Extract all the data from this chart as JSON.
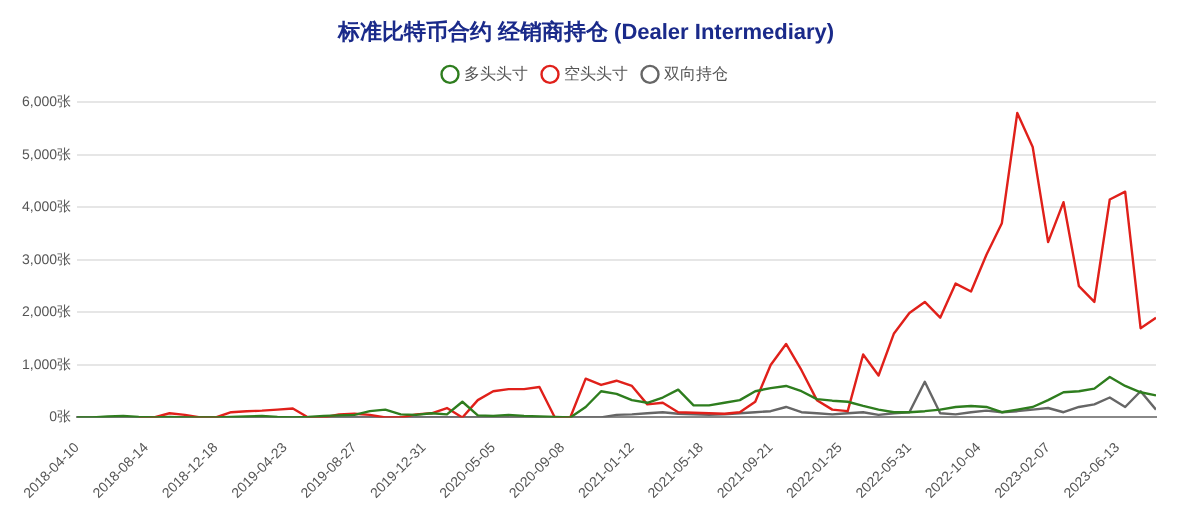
{
  "chart_data": {
    "type": "line",
    "title": "标准比特币合约 经销商持仓 (Dealer Intermediary)",
    "x": [
      "2018-04-10",
      "2018-05-08",
      "2018-06-05",
      "2018-07-03",
      "2018-07-31",
      "2018-08-28",
      "2018-09-25",
      "2018-10-23",
      "2018-11-20",
      "2018-12-18",
      "2019-01-15",
      "2019-02-12",
      "2019-03-12",
      "2019-04-09",
      "2019-05-07",
      "2019-06-04",
      "2019-07-02",
      "2019-07-30",
      "2019-08-27",
      "2019-09-24",
      "2019-10-22",
      "2019-11-19",
      "2019-12-17",
      "2020-01-14",
      "2020-02-11",
      "2020-03-10",
      "2020-04-07",
      "2020-05-05",
      "2020-06-02",
      "2020-06-30",
      "2020-07-28",
      "2020-08-25",
      "2020-09-22",
      "2020-10-20",
      "2020-11-17",
      "2020-12-15",
      "2021-01-12",
      "2021-02-09",
      "2021-03-09",
      "2021-04-06",
      "2021-05-04",
      "2021-06-01",
      "2021-06-29",
      "2021-07-27",
      "2021-08-24",
      "2021-09-21",
      "2021-10-19",
      "2021-11-16",
      "2021-12-14",
      "2022-01-11",
      "2022-02-08",
      "2022-03-08",
      "2022-04-05",
      "2022-05-03",
      "2022-05-31",
      "2022-06-28",
      "2022-07-26",
      "2022-08-23",
      "2022-09-20",
      "2022-10-18",
      "2022-11-15",
      "2022-12-13",
      "2023-01-10",
      "2023-02-07",
      "2023-03-07",
      "2023-04-04",
      "2023-05-02",
      "2023-05-30",
      "2023-06-27",
      "2023-07-25",
      "2023-08-22"
    ],
    "series": [
      {
        "name": "多头头寸",
        "color": "#2e7d1e",
        "values": [
          0,
          0,
          20,
          30,
          10,
          0,
          10,
          0,
          0,
          0,
          10,
          20,
          30,
          10,
          0,
          10,
          30,
          40,
          50,
          120,
          150,
          60,
          50,
          80,
          60,
          300,
          40,
          30,
          50,
          30,
          20,
          10,
          0,
          200,
          500,
          450,
          330,
          280,
          380,
          530,
          230,
          230,
          280,
          330,
          500,
          560,
          600,
          500,
          350,
          320,
          300,
          220,
          150,
          100,
          100,
          120,
          150,
          200,
          220,
          200,
          100,
          150,
          200,
          330,
          480,
          500,
          550,
          770,
          600,
          480,
          420
        ]
      },
      {
        "name": "空头头寸",
        "color": "#e0201a",
        "values": [
          null,
          null,
          null,
          null,
          0,
          0,
          80,
          50,
          0,
          0,
          100,
          120,
          130,
          150,
          170,
          0,
          0,
          60,
          70,
          50,
          0,
          0,
          60,
          80,
          180,
          0,
          330,
          500,
          540,
          540,
          580,
          0,
          0,
          740,
          620,
          700,
          600,
          250,
          280,
          100,
          90,
          80,
          70,
          100,
          300,
          1000,
          1400,
          900,
          330,
          150,
          120,
          1200,
          800,
          1600,
          1990,
          2200,
          1900,
          2550,
          2400,
          3100,
          3700,
          5800,
          5150,
          3340,
          4100,
          2500,
          2200,
          4150,
          4300,
          1700,
          1900
        ]
      },
      {
        "name": "双向持仓",
        "color": "#666666",
        "values": [
          0,
          0,
          0,
          0,
          0,
          0,
          0,
          0,
          0,
          0,
          0,
          0,
          0,
          0,
          0,
          0,
          0,
          0,
          0,
          0,
          0,
          0,
          0,
          0,
          0,
          0,
          0,
          0,
          0,
          0,
          0,
          0,
          0,
          0,
          0,
          50,
          60,
          80,
          100,
          70,
          60,
          50,
          60,
          80,
          100,
          120,
          200,
          100,
          80,
          60,
          80,
          100,
          50,
          80,
          100,
          680,
          80,
          60,
          100,
          130,
          100,
          120,
          150,
          180,
          100,
          200,
          250,
          380,
          200,
          500,
          150
        ]
      }
    ],
    "xlim": [
      "2018-04-10",
      "2023-08-22"
    ],
    "xticks": [
      "2018-04-10",
      "2018-08-14",
      "2018-12-18",
      "2019-04-23",
      "2019-08-27",
      "2019-12-31",
      "2020-05-05",
      "2020-09-08",
      "2021-01-12",
      "2021-05-18",
      "2021-09-21",
      "2022-01-25",
      "2022-05-31",
      "2022-10-04",
      "2023-02-07",
      "2023-06-13"
    ],
    "ylim": [
      0,
      6000
    ],
    "yticks": [
      {
        "value": 0,
        "label": "0张"
      },
      {
        "value": 1000,
        "label": "1,000张"
      },
      {
        "value": 2000,
        "label": "2,000张"
      },
      {
        "value": 3000,
        "label": "3,000张"
      },
      {
        "value": 4000,
        "label": "4,000张"
      },
      {
        "value": 5000,
        "label": "5,000张"
      },
      {
        "value": 6000,
        "label": "6,000张"
      }
    ],
    "grid": "y",
    "legend": "top",
    "marker": "none",
    "line_style": "solid"
  }
}
